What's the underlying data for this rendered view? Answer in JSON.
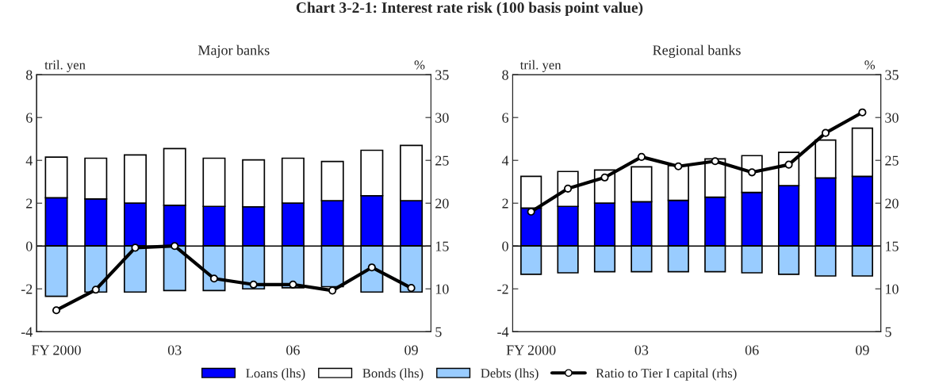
{
  "chart_data": [
    {
      "type": "bar",
      "title": "Chart 3-2-1: Interest rate risk (100 basis point value)",
      "subtitle": "Major banks",
      "ylabel": "tril. yen",
      "y2label": "%",
      "stacked": true,
      "legend": "bottom",
      "marker": "circle",
      "categories": [
        "FY 2000",
        null,
        null,
        "03",
        null,
        null,
        "06",
        null,
        null,
        "09"
      ],
      "ylim": [
        -4,
        8
      ],
      "yticks": [
        -4,
        -2,
        0,
        2,
        4,
        6,
        8
      ],
      "y2lim": [
        5,
        35
      ],
      "y2ticks": [
        5,
        10,
        15,
        20,
        25,
        30,
        35
      ],
      "series": [
        {
          "name": "Loans (lhs)",
          "color": "#0000ff",
          "values": [
            2.25,
            2.2,
            2.0,
            1.9,
            1.85,
            1.83,
            2.0,
            2.12,
            2.35,
            2.12
          ]
        },
        {
          "name": "Bonds (lhs)",
          "color": "#ffffff",
          "values": [
            1.9,
            1.9,
            2.25,
            2.65,
            2.25,
            2.19,
            2.1,
            1.83,
            2.12,
            2.58
          ]
        },
        {
          "name": "Debts (lhs)",
          "color": "#99ccff",
          "values": [
            -2.35,
            -2.15,
            -2.15,
            -2.08,
            -2.08,
            -2.0,
            -1.95,
            -1.9,
            -2.15,
            -2.15
          ]
        },
        {
          "name": "Ratio to Tier I capital (rhs)",
          "type": "line",
          "axis": "y2",
          "color": "#000000",
          "values": [
            7.5,
            9.9,
            14.8,
            15.0,
            11.2,
            10.5,
            10.5,
            9.8,
            12.5,
            10.1
          ]
        }
      ]
    },
    {
      "type": "bar",
      "subtitle": "Regional banks",
      "ylabel": "tril. yen",
      "y2label": "%",
      "stacked": true,
      "marker": "circle",
      "categories": [
        "FY 2000",
        null,
        null,
        "03",
        null,
        null,
        "06",
        null,
        null,
        "09"
      ],
      "ylim": [
        -4,
        8
      ],
      "yticks": [
        -4,
        -2,
        0,
        2,
        4,
        6,
        8
      ],
      "y2lim": [
        5,
        35
      ],
      "y2ticks": [
        5,
        10,
        15,
        20,
        25,
        30,
        35
      ],
      "series": [
        {
          "color": "#0000ff",
          "values": [
            1.77,
            1.85,
            2.0,
            2.07,
            2.13,
            2.28,
            2.5,
            2.82,
            3.18,
            3.25
          ]
        },
        {
          "color": "#ffffff",
          "values": [
            1.48,
            1.63,
            1.55,
            1.63,
            1.62,
            1.79,
            1.72,
            1.55,
            1.77,
            2.25
          ]
        },
        {
          "color": "#99ccff",
          "values": [
            -1.32,
            -1.25,
            -1.2,
            -1.2,
            -1.2,
            -1.2,
            -1.25,
            -1.32,
            -1.4,
            -1.4
          ]
        },
        {
          "type": "line",
          "axis": "y2",
          "color": "#000000",
          "values": [
            19.0,
            21.7,
            23.0,
            25.4,
            24.3,
            24.9,
            23.6,
            24.5,
            28.2,
            30.6
          ]
        }
      ]
    }
  ]
}
